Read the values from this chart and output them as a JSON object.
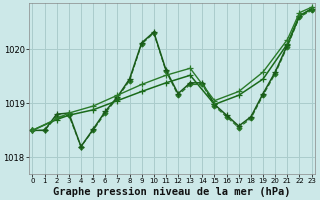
{
  "title": "Graphe pression niveau de la mer (hPa)",
  "background_color": "#cce8e8",
  "grid_color": "#aacccc",
  "xlabel_fontsize": 7.5,
  "ylim": [
    1017.7,
    1020.85
  ],
  "xlim": [
    -0.3,
    23.3
  ],
  "yticks": [
    1018,
    1019,
    1020
  ],
  "xticks": [
    0,
    1,
    2,
    3,
    4,
    5,
    6,
    7,
    8,
    9,
    10,
    11,
    12,
    13,
    14,
    15,
    16,
    17,
    18,
    19,
    20,
    21,
    22,
    23
  ],
  "series": [
    {
      "x": [
        0,
        1,
        2,
        3,
        4,
        5,
        6,
        7,
        8,
        9,
        10,
        11,
        12,
        13,
        14,
        15,
        16,
        17,
        18,
        19,
        20,
        21,
        22,
        23
      ],
      "y": [
        1018.5,
        1018.5,
        1018.75,
        1018.78,
        1018.2,
        1018.5,
        1018.82,
        1019.1,
        1019.42,
        1020.1,
        1020.3,
        1019.6,
        1019.15,
        1019.35,
        1019.35,
        1018.95,
        1018.75,
        1018.55,
        1018.72,
        1019.15,
        1019.55,
        1020.05,
        1020.6,
        1020.72
      ],
      "style": "--",
      "marker": "D",
      "markersize": 2.5,
      "linewidth": 0.9,
      "color": "#2a7a2a"
    },
    {
      "x": [
        0,
        1,
        2,
        3,
        4,
        5,
        6,
        7,
        8,
        9,
        10,
        11,
        12,
        13,
        14,
        15,
        16,
        17,
        18,
        19,
        20,
        21,
        22,
        23
      ],
      "y": [
        1018.5,
        1018.5,
        1018.8,
        1018.82,
        1018.2,
        1018.52,
        1018.85,
        1019.12,
        1019.45,
        1020.12,
        1020.32,
        1019.62,
        1019.18,
        1019.38,
        1019.38,
        1018.98,
        1018.78,
        1018.58,
        1018.75,
        1019.18,
        1019.58,
        1020.08,
        1020.62,
        1020.75
      ],
      "style": "-",
      "marker": "+",
      "markersize": 4,
      "linewidth": 1.1,
      "color": "#1a5a1a"
    },
    {
      "x": [
        0,
        2,
        3,
        5,
        7,
        9,
        11,
        13,
        15,
        17,
        19,
        21,
        22,
        23
      ],
      "y": [
        1018.5,
        1018.7,
        1018.78,
        1018.88,
        1019.05,
        1019.22,
        1019.38,
        1019.52,
        1018.98,
        1019.15,
        1019.45,
        1020.1,
        1020.62,
        1020.75
      ],
      "style": "-",
      "marker": "+",
      "markersize": 4,
      "linewidth": 1.1,
      "color": "#1a6a1a"
    },
    {
      "x": [
        0,
        3,
        5,
        7,
        9,
        11,
        13,
        15,
        17,
        19,
        21,
        22,
        23
      ],
      "y": [
        1018.5,
        1018.82,
        1018.95,
        1019.15,
        1019.35,
        1019.52,
        1019.65,
        1019.05,
        1019.22,
        1019.58,
        1020.18,
        1020.68,
        1020.78
      ],
      "style": "-",
      "marker": "+",
      "markersize": 4,
      "linewidth": 1.0,
      "color": "#2a7a2a"
    }
  ]
}
